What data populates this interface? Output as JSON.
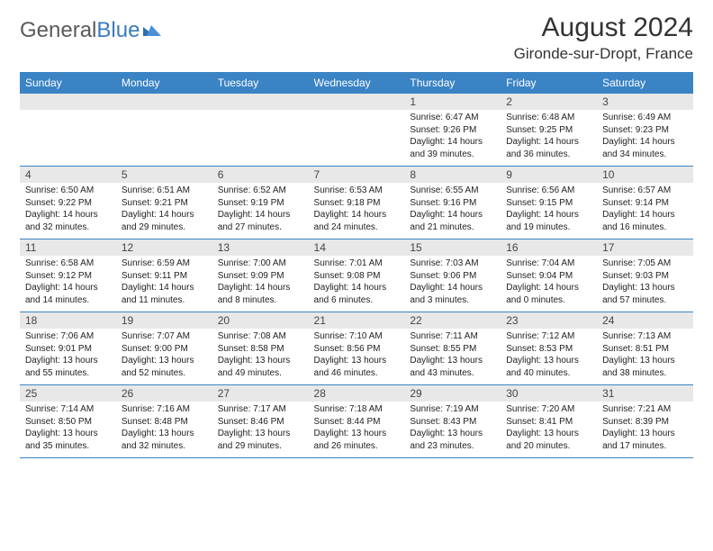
{
  "brand": {
    "text1": "General",
    "text2": "Blue"
  },
  "title": "August 2024",
  "location": "Gironde-sur-Dropt, France",
  "colors": {
    "header_bg": "#3a83c4",
    "header_text": "#ffffff",
    "daynum_bg": "#e8e8e8",
    "row_border": "#3a83c4",
    "logo_gray": "#5a5a5a",
    "logo_blue": "#3a7bbf"
  },
  "daysOfWeek": [
    "Sunday",
    "Monday",
    "Tuesday",
    "Wednesday",
    "Thursday",
    "Friday",
    "Saturday"
  ],
  "weeks": [
    [
      {
        "n": "",
        "lines": []
      },
      {
        "n": "",
        "lines": []
      },
      {
        "n": "",
        "lines": []
      },
      {
        "n": "",
        "lines": []
      },
      {
        "n": "1",
        "lines": [
          "Sunrise: 6:47 AM",
          "Sunset: 9:26 PM",
          "Daylight: 14 hours and 39 minutes."
        ]
      },
      {
        "n": "2",
        "lines": [
          "Sunrise: 6:48 AM",
          "Sunset: 9:25 PM",
          "Daylight: 14 hours and 36 minutes."
        ]
      },
      {
        "n": "3",
        "lines": [
          "Sunrise: 6:49 AM",
          "Sunset: 9:23 PM",
          "Daylight: 14 hours and 34 minutes."
        ]
      }
    ],
    [
      {
        "n": "4",
        "lines": [
          "Sunrise: 6:50 AM",
          "Sunset: 9:22 PM",
          "Daylight: 14 hours and 32 minutes."
        ]
      },
      {
        "n": "5",
        "lines": [
          "Sunrise: 6:51 AM",
          "Sunset: 9:21 PM",
          "Daylight: 14 hours and 29 minutes."
        ]
      },
      {
        "n": "6",
        "lines": [
          "Sunrise: 6:52 AM",
          "Sunset: 9:19 PM",
          "Daylight: 14 hours and 27 minutes."
        ]
      },
      {
        "n": "7",
        "lines": [
          "Sunrise: 6:53 AM",
          "Sunset: 9:18 PM",
          "Daylight: 14 hours and 24 minutes."
        ]
      },
      {
        "n": "8",
        "lines": [
          "Sunrise: 6:55 AM",
          "Sunset: 9:16 PM",
          "Daylight: 14 hours and 21 minutes."
        ]
      },
      {
        "n": "9",
        "lines": [
          "Sunrise: 6:56 AM",
          "Sunset: 9:15 PM",
          "Daylight: 14 hours and 19 minutes."
        ]
      },
      {
        "n": "10",
        "lines": [
          "Sunrise: 6:57 AM",
          "Sunset: 9:14 PM",
          "Daylight: 14 hours and 16 minutes."
        ]
      }
    ],
    [
      {
        "n": "11",
        "lines": [
          "Sunrise: 6:58 AM",
          "Sunset: 9:12 PM",
          "Daylight: 14 hours and 14 minutes."
        ]
      },
      {
        "n": "12",
        "lines": [
          "Sunrise: 6:59 AM",
          "Sunset: 9:11 PM",
          "Daylight: 14 hours and 11 minutes."
        ]
      },
      {
        "n": "13",
        "lines": [
          "Sunrise: 7:00 AM",
          "Sunset: 9:09 PM",
          "Daylight: 14 hours and 8 minutes."
        ]
      },
      {
        "n": "14",
        "lines": [
          "Sunrise: 7:01 AM",
          "Sunset: 9:08 PM",
          "Daylight: 14 hours and 6 minutes."
        ]
      },
      {
        "n": "15",
        "lines": [
          "Sunrise: 7:03 AM",
          "Sunset: 9:06 PM",
          "Daylight: 14 hours and 3 minutes."
        ]
      },
      {
        "n": "16",
        "lines": [
          "Sunrise: 7:04 AM",
          "Sunset: 9:04 PM",
          "Daylight: 14 hours and 0 minutes."
        ]
      },
      {
        "n": "17",
        "lines": [
          "Sunrise: 7:05 AM",
          "Sunset: 9:03 PM",
          "Daylight: 13 hours and 57 minutes."
        ]
      }
    ],
    [
      {
        "n": "18",
        "lines": [
          "Sunrise: 7:06 AM",
          "Sunset: 9:01 PM",
          "Daylight: 13 hours and 55 minutes."
        ]
      },
      {
        "n": "19",
        "lines": [
          "Sunrise: 7:07 AM",
          "Sunset: 9:00 PM",
          "Daylight: 13 hours and 52 minutes."
        ]
      },
      {
        "n": "20",
        "lines": [
          "Sunrise: 7:08 AM",
          "Sunset: 8:58 PM",
          "Daylight: 13 hours and 49 minutes."
        ]
      },
      {
        "n": "21",
        "lines": [
          "Sunrise: 7:10 AM",
          "Sunset: 8:56 PM",
          "Daylight: 13 hours and 46 minutes."
        ]
      },
      {
        "n": "22",
        "lines": [
          "Sunrise: 7:11 AM",
          "Sunset: 8:55 PM",
          "Daylight: 13 hours and 43 minutes."
        ]
      },
      {
        "n": "23",
        "lines": [
          "Sunrise: 7:12 AM",
          "Sunset: 8:53 PM",
          "Daylight: 13 hours and 40 minutes."
        ]
      },
      {
        "n": "24",
        "lines": [
          "Sunrise: 7:13 AM",
          "Sunset: 8:51 PM",
          "Daylight: 13 hours and 38 minutes."
        ]
      }
    ],
    [
      {
        "n": "25",
        "lines": [
          "Sunrise: 7:14 AM",
          "Sunset: 8:50 PM",
          "Daylight: 13 hours and 35 minutes."
        ]
      },
      {
        "n": "26",
        "lines": [
          "Sunrise: 7:16 AM",
          "Sunset: 8:48 PM",
          "Daylight: 13 hours and 32 minutes."
        ]
      },
      {
        "n": "27",
        "lines": [
          "Sunrise: 7:17 AM",
          "Sunset: 8:46 PM",
          "Daylight: 13 hours and 29 minutes."
        ]
      },
      {
        "n": "28",
        "lines": [
          "Sunrise: 7:18 AM",
          "Sunset: 8:44 PM",
          "Daylight: 13 hours and 26 minutes."
        ]
      },
      {
        "n": "29",
        "lines": [
          "Sunrise: 7:19 AM",
          "Sunset: 8:43 PM",
          "Daylight: 13 hours and 23 minutes."
        ]
      },
      {
        "n": "30",
        "lines": [
          "Sunrise: 7:20 AM",
          "Sunset: 8:41 PM",
          "Daylight: 13 hours and 20 minutes."
        ]
      },
      {
        "n": "31",
        "lines": [
          "Sunrise: 7:21 AM",
          "Sunset: 8:39 PM",
          "Daylight: 13 hours and 17 minutes."
        ]
      }
    ]
  ]
}
